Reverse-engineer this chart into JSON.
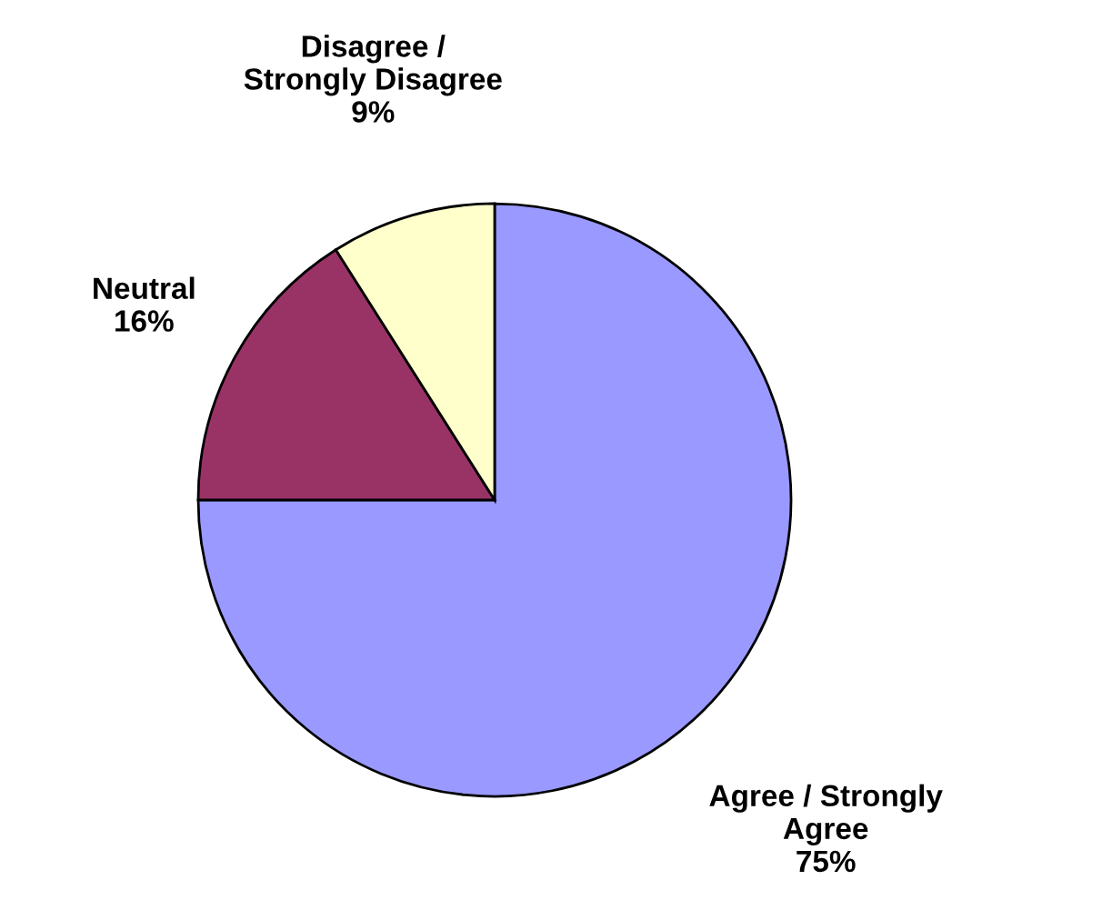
{
  "chart_data": {
    "type": "pie",
    "categories": [
      "Agree / Strongly\nAgree",
      "Neutral",
      "Disagree /\nStrongly Disagree"
    ],
    "values": [
      75,
      16,
      9
    ],
    "value_labels": [
      "75%",
      "16%",
      "9%"
    ],
    "colors": [
      "#9999ff",
      "#993366",
      "#ffffcc"
    ]
  }
}
